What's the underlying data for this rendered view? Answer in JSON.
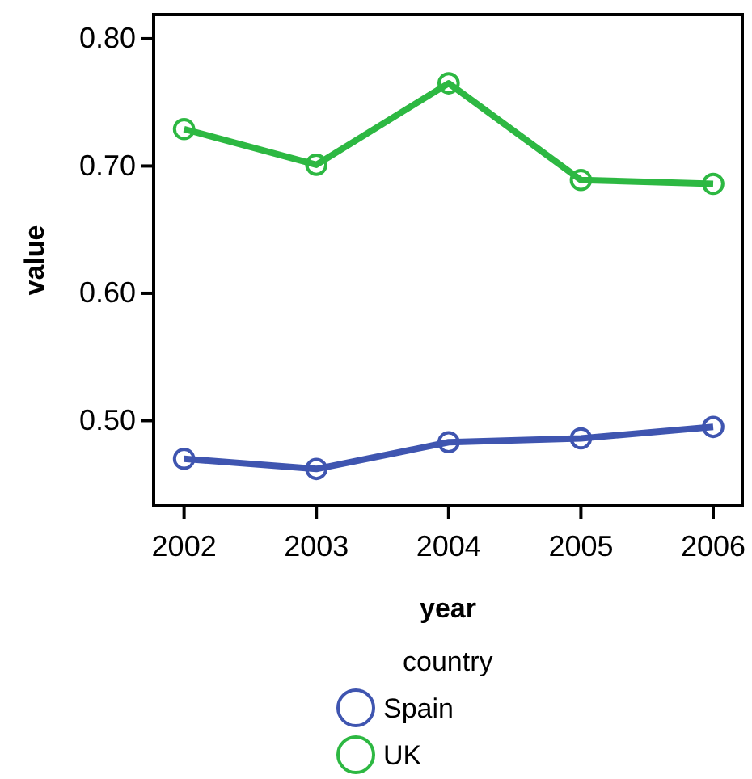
{
  "chart_data": {
    "type": "line",
    "xlabel": "year",
    "ylabel": "value",
    "legend_title": "country",
    "x": [
      2002,
      2003,
      2004,
      2005,
      2006
    ],
    "series": [
      {
        "name": "Spain",
        "color": "#3f55b0",
        "values": [
          0.47,
          0.462,
          0.483,
          0.486,
          0.495
        ]
      },
      {
        "name": "UK",
        "color": "#2db842",
        "values": [
          0.729,
          0.701,
          0.765,
          0.689,
          0.686
        ]
      }
    ],
    "xlim": [
      2001.77,
      2006.22
    ],
    "xticks": [
      2002,
      2003,
      2004,
      2005,
      2006
    ],
    "ylim": [
      0.433,
      0.819
    ],
    "yticks": [
      {
        "value": 0.5,
        "label": "0.50"
      },
      {
        "value": 0.6,
        "label": "0.60"
      },
      {
        "value": 0.7,
        "label": "0.70"
      },
      {
        "value": 0.8,
        "label": "0.80"
      }
    ],
    "grid": false,
    "legend": "bottom",
    "marker": "circle",
    "line_style": "solid"
  }
}
